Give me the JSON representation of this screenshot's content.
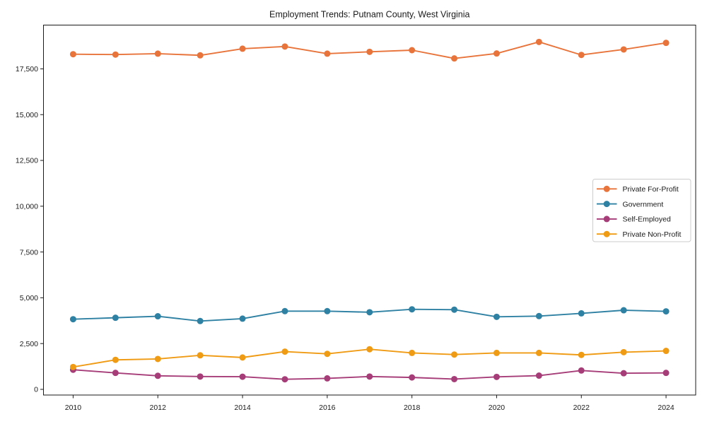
{
  "chart_data": {
    "type": "line",
    "title": "Employment Trends: Putnam County, West Virginia",
    "xlabel": "",
    "ylabel": "",
    "x": [
      2010,
      2011,
      2012,
      2013,
      2014,
      2015,
      2016,
      2017,
      2018,
      2019,
      2020,
      2021,
      2022,
      2023,
      2024
    ],
    "series": [
      {
        "name": "Private For-Profit",
        "color": "#e8743b",
        "values": [
          18300,
          18280,
          18330,
          18240,
          18600,
          18720,
          18330,
          18430,
          18520,
          18070,
          18340,
          18970,
          18260,
          18560,
          18920
        ]
      },
      {
        "name": "Government",
        "color": "#2f81a3",
        "values": [
          3830,
          3910,
          3990,
          3730,
          3860,
          4270,
          4270,
          4210,
          4370,
          4350,
          3960,
          4000,
          4150,
          4320,
          4260
        ]
      },
      {
        "name": "Self-Employed",
        "color": "#a63c78",
        "values": [
          1070,
          900,
          740,
          700,
          690,
          550,
          600,
          700,
          650,
          560,
          680,
          750,
          1030,
          880,
          900
        ]
      },
      {
        "name": "Private Non-Profit",
        "color": "#f09b14",
        "values": [
          1220,
          1610,
          1660,
          1860,
          1740,
          2060,
          1940,
          2190,
          1990,
          1900,
          1990,
          1990,
          1880,
          2030,
          2100
        ]
      }
    ],
    "xticks": [
      2010,
      2012,
      2014,
      2016,
      2018,
      2020,
      2022,
      2024
    ],
    "yticks": [
      0,
      2500,
      5000,
      7500,
      10000,
      12500,
      15000,
      17500
    ],
    "ytick_labels": [
      "0",
      "2,500",
      "5,000",
      "7,500",
      "10,000",
      "12,500",
      "15,000",
      "17,500"
    ],
    "xlim": [
      2009.3,
      2024.7
    ],
    "ylim": [
      -310,
      19890
    ],
    "grid": false,
    "legend_position": "center-right",
    "background": "#ffffff",
    "axis_color": "#1a1a1a"
  }
}
